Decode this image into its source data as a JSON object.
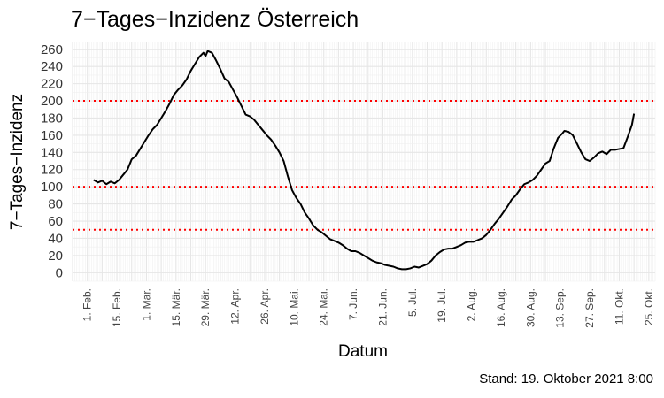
{
  "chart_data": {
    "type": "line",
    "title": "7−Tages−Inzidenz Österreich",
    "xlabel": "Datum",
    "ylabel": "7−Tages−Inzidenz",
    "caption": "Stand: 19. Oktober 2021 8:00",
    "grid": true,
    "legend": "none",
    "colors": {
      "line": "#000000",
      "threshold": "#ff0000",
      "grid_major": "#e6e6e6",
      "grid_minor": "#f0f0f0"
    },
    "xlim": [
      "2021-01-25",
      "2021-10-28"
    ],
    "ylim": [
      -10,
      268
    ],
    "yticks": [
      0,
      20,
      40,
      60,
      80,
      100,
      120,
      140,
      160,
      180,
      200,
      220,
      240,
      260
    ],
    "xticks": [
      {
        "date": "2021-02-01",
        "label": "1. Feb."
      },
      {
        "date": "2021-02-15",
        "label": "15. Feb."
      },
      {
        "date": "2021-03-01",
        "label": "1. Mär."
      },
      {
        "date": "2021-03-15",
        "label": "15. Mär."
      },
      {
        "date": "2021-03-29",
        "label": "29. Mär."
      },
      {
        "date": "2021-04-12",
        "label": "12. Apr."
      },
      {
        "date": "2021-04-26",
        "label": "26. Apr."
      },
      {
        "date": "2021-05-10",
        "label": "10. Mai."
      },
      {
        "date": "2021-05-24",
        "label": "24. Mai."
      },
      {
        "date": "2021-06-07",
        "label": "7. Jun."
      },
      {
        "date": "2021-06-21",
        "label": "21. Jun."
      },
      {
        "date": "2021-07-05",
        "label": "5. Jul."
      },
      {
        "date": "2021-07-19",
        "label": "19. Jul."
      },
      {
        "date": "2021-08-02",
        "label": "2. Aug."
      },
      {
        "date": "2021-08-16",
        "label": "16. Aug."
      },
      {
        "date": "2021-08-30",
        "label": "30. Aug."
      },
      {
        "date": "2021-09-13",
        "label": "13. Sep."
      },
      {
        "date": "2021-09-27",
        "label": "27. Sep."
      },
      {
        "date": "2021-10-11",
        "label": "11. Okt."
      },
      {
        "date": "2021-10-25",
        "label": "25. Okt."
      }
    ],
    "thresholds": [
      50,
      100,
      200
    ],
    "series": [
      {
        "points": [
          [
            "2021-02-04",
            108
          ],
          [
            "2021-02-06",
            105
          ],
          [
            "2021-02-08",
            107
          ],
          [
            "2021-02-10",
            103
          ],
          [
            "2021-02-12",
            106
          ],
          [
            "2021-02-14",
            104
          ],
          [
            "2021-02-16",
            108
          ],
          [
            "2021-02-18",
            114
          ],
          [
            "2021-02-20",
            120
          ],
          [
            "2021-02-22",
            132
          ],
          [
            "2021-02-24",
            136
          ],
          [
            "2021-02-26",
            144
          ],
          [
            "2021-02-28",
            152
          ],
          [
            "2021-03-02",
            160
          ],
          [
            "2021-03-04",
            167
          ],
          [
            "2021-03-06",
            172
          ],
          [
            "2021-03-08",
            180
          ],
          [
            "2021-03-10",
            188
          ],
          [
            "2021-03-12",
            197
          ],
          [
            "2021-03-14",
            207
          ],
          [
            "2021-03-16",
            213
          ],
          [
            "2021-03-18",
            218
          ],
          [
            "2021-03-20",
            225
          ],
          [
            "2021-03-22",
            235
          ],
          [
            "2021-03-24",
            243
          ],
          [
            "2021-03-26",
            251
          ],
          [
            "2021-03-28",
            256
          ],
          [
            "2021-03-29",
            252
          ],
          [
            "2021-03-30",
            258
          ],
          [
            "2021-04-01",
            256
          ],
          [
            "2021-04-03",
            247
          ],
          [
            "2021-04-05",
            237
          ],
          [
            "2021-04-07",
            226
          ],
          [
            "2021-04-09",
            222
          ],
          [
            "2021-04-11",
            213
          ],
          [
            "2021-04-13",
            204
          ],
          [
            "2021-04-15",
            194
          ],
          [
            "2021-04-17",
            184
          ],
          [
            "2021-04-19",
            182
          ],
          [
            "2021-04-21",
            178
          ],
          [
            "2021-04-23",
            172
          ],
          [
            "2021-04-25",
            166
          ],
          [
            "2021-04-27",
            160
          ],
          [
            "2021-04-29",
            155
          ],
          [
            "2021-05-01",
            148
          ],
          [
            "2021-05-03",
            140
          ],
          [
            "2021-05-05",
            130
          ],
          [
            "2021-05-07",
            112
          ],
          [
            "2021-05-09",
            96
          ],
          [
            "2021-05-11",
            87
          ],
          [
            "2021-05-13",
            80
          ],
          [
            "2021-05-15",
            70
          ],
          [
            "2021-05-17",
            63
          ],
          [
            "2021-05-19",
            55
          ],
          [
            "2021-05-21",
            50
          ],
          [
            "2021-05-23",
            47
          ],
          [
            "2021-05-25",
            43
          ],
          [
            "2021-05-27",
            39
          ],
          [
            "2021-05-29",
            37
          ],
          [
            "2021-05-31",
            35
          ],
          [
            "2021-06-02",
            32
          ],
          [
            "2021-06-04",
            28
          ],
          [
            "2021-06-06",
            25
          ],
          [
            "2021-06-08",
            25
          ],
          [
            "2021-06-10",
            23
          ],
          [
            "2021-06-12",
            20
          ],
          [
            "2021-06-14",
            17
          ],
          [
            "2021-06-16",
            14
          ],
          [
            "2021-06-18",
            12
          ],
          [
            "2021-06-20",
            11
          ],
          [
            "2021-06-22",
            9
          ],
          [
            "2021-06-24",
            8
          ],
          [
            "2021-06-26",
            7
          ],
          [
            "2021-06-28",
            5
          ],
          [
            "2021-06-30",
            4
          ],
          [
            "2021-07-02",
            4
          ],
          [
            "2021-07-04",
            5
          ],
          [
            "2021-07-06",
            7
          ],
          [
            "2021-07-08",
            6
          ],
          [
            "2021-07-10",
            8
          ],
          [
            "2021-07-12",
            10
          ],
          [
            "2021-07-14",
            14
          ],
          [
            "2021-07-16",
            20
          ],
          [
            "2021-07-18",
            24
          ],
          [
            "2021-07-20",
            27
          ],
          [
            "2021-07-22",
            28
          ],
          [
            "2021-07-24",
            28
          ],
          [
            "2021-07-26",
            30
          ],
          [
            "2021-07-28",
            32
          ],
          [
            "2021-07-30",
            35
          ],
          [
            "2021-08-01",
            36
          ],
          [
            "2021-08-03",
            36
          ],
          [
            "2021-08-05",
            38
          ],
          [
            "2021-08-07",
            40
          ],
          [
            "2021-08-09",
            44
          ],
          [
            "2021-08-11",
            50
          ],
          [
            "2021-08-13",
            57
          ],
          [
            "2021-08-15",
            63
          ],
          [
            "2021-08-17",
            70
          ],
          [
            "2021-08-19",
            77
          ],
          [
            "2021-08-21",
            85
          ],
          [
            "2021-08-23",
            90
          ],
          [
            "2021-08-25",
            97
          ],
          [
            "2021-08-27",
            103
          ],
          [
            "2021-08-29",
            105
          ],
          [
            "2021-08-31",
            108
          ],
          [
            "2021-09-02",
            113
          ],
          [
            "2021-09-04",
            120
          ],
          [
            "2021-09-06",
            127
          ],
          [
            "2021-09-08",
            130
          ],
          [
            "2021-09-10",
            145
          ],
          [
            "2021-09-12",
            157
          ],
          [
            "2021-09-14",
            162
          ],
          [
            "2021-09-15",
            165
          ],
          [
            "2021-09-17",
            164
          ],
          [
            "2021-09-19",
            160
          ],
          [
            "2021-09-21",
            150
          ],
          [
            "2021-09-23",
            140
          ],
          [
            "2021-09-25",
            132
          ],
          [
            "2021-09-27",
            130
          ],
          [
            "2021-09-29",
            134
          ],
          [
            "2021-10-01",
            139
          ],
          [
            "2021-10-03",
            141
          ],
          [
            "2021-10-05",
            138
          ],
          [
            "2021-10-07",
            143
          ],
          [
            "2021-10-09",
            143
          ],
          [
            "2021-10-11",
            144
          ],
          [
            "2021-10-13",
            145
          ],
          [
            "2021-10-15",
            158
          ],
          [
            "2021-10-17",
            172
          ],
          [
            "2021-10-18",
            185
          ]
        ]
      }
    ]
  }
}
